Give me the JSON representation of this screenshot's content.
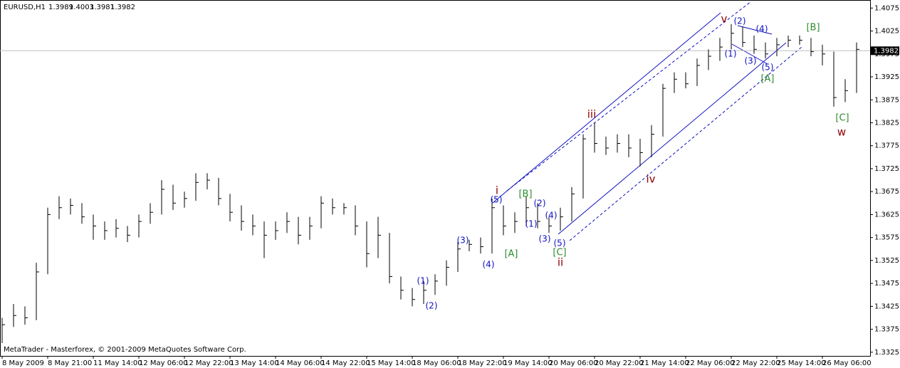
{
  "chart_data": {
    "type": "ohlc",
    "header": {
      "symbol": "EURUSD,H1",
      "open": 1.3989,
      "high": 1.4003,
      "low": 1.3981,
      "close": 1.3982
    },
    "footer": "MetaTrader - Masterforex, © 2001-2009 MetaQuotes Software Corp.",
    "current_price": 1.3982,
    "color": "#000000",
    "ylim": [
      1.3317,
      1.4091
    ],
    "yticks": [
      1.4075,
      1.4025,
      1.3975,
      1.3925,
      1.3875,
      1.3825,
      1.3775,
      1.3725,
      1.3675,
      1.3625,
      1.3575,
      1.3525,
      1.3475,
      1.3425,
      1.3375,
      1.3325
    ],
    "categories": [
      "8 May 2009",
      null,
      null,
      null,
      "8 May 21:00",
      null,
      null,
      null,
      "11 May 14:00",
      null,
      null,
      null,
      "12 May 06:00",
      null,
      null,
      null,
      "12 May 22:00",
      null,
      null,
      null,
      "13 May 14:00",
      null,
      null,
      null,
      "14 May 06:00",
      null,
      null,
      null,
      "14 May 22:00",
      null,
      null,
      null,
      "15 May 14:00",
      null,
      null,
      null,
      "18 May 06:00",
      null,
      null,
      null,
      "18 May 22:00",
      null,
      null,
      null,
      "19 May 14:00",
      null,
      null,
      null,
      "20 May 06:00",
      null,
      null,
      null,
      "20 May 22:00",
      null,
      null,
      null,
      "21 May 14:00",
      null,
      null,
      null,
      "22 May 06:00",
      null,
      null,
      null,
      "22 May 22:00",
      null,
      null,
      null,
      "25 May 14:00",
      null,
      null,
      null,
      "26 May 06:00",
      null,
      null,
      null
    ],
    "high": [
      1.34,
      1.343,
      1.3425,
      1.352,
      1.364,
      1.3665,
      1.366,
      1.365,
      1.3625,
      1.361,
      1.3615,
      1.36,
      1.3625,
      1.365,
      1.37,
      1.369,
      1.3675,
      1.3715,
      1.3715,
      1.3705,
      1.367,
      1.3645,
      1.3625,
      1.361,
      1.361,
      1.363,
      1.362,
      1.362,
      1.3665,
      1.366,
      1.365,
      1.3645,
      1.361,
      1.362,
      1.3585,
      1.349,
      1.3465,
      1.348,
      1.3495,
      1.3525,
      1.3565,
      1.357,
      1.3575,
      1.366,
      1.3645,
      1.363,
      1.3665,
      1.365,
      1.362,
      1.364,
      1.3685,
      1.38,
      1.3825,
      1.3795,
      1.38,
      1.38,
      1.379,
      1.382,
      1.391,
      1.3935,
      1.3935,
      1.3965,
      1.3985,
      1.401,
      1.404,
      1.4035,
      1.4015,
      1.4,
      1.401,
      1.4015,
      1.4015,
      1.401,
      1.3995,
      1.398,
      1.392,
      1.4
    ],
    "low": [
      1.3345,
      1.338,
      1.3385,
      1.3395,
      1.3495,
      1.3615,
      1.3625,
      1.3605,
      1.357,
      1.357,
      1.3575,
      1.3565,
      1.3575,
      1.3605,
      1.3625,
      1.3635,
      1.364,
      1.3655,
      1.368,
      1.3645,
      1.361,
      1.359,
      1.358,
      1.353,
      1.357,
      1.3585,
      1.356,
      1.357,
      1.3595,
      1.3625,
      1.3625,
      1.358,
      1.351,
      1.353,
      1.3475,
      1.344,
      1.3425,
      1.343,
      1.345,
      1.347,
      1.35,
      1.3545,
      1.354,
      1.354,
      1.358,
      1.3585,
      1.36,
      1.3595,
      1.3585,
      1.359,
      1.361,
      1.366,
      1.376,
      1.3755,
      1.376,
      1.375,
      1.373,
      1.375,
      1.3795,
      1.389,
      1.39,
      1.3905,
      1.394,
      1.396,
      1.3985,
      1.399,
      1.3975,
      1.3965,
      1.397,
      1.399,
      1.3995,
      1.397,
      1.395,
      1.386,
      1.387,
      1.389
    ],
    "close": [
      1.3385,
      1.3405,
      1.34,
      1.35,
      1.3625,
      1.364,
      1.3645,
      1.362,
      1.36,
      1.359,
      1.3595,
      1.358,
      1.361,
      1.363,
      1.368,
      1.365,
      1.366,
      1.3695,
      1.37,
      1.366,
      1.363,
      1.361,
      1.36,
      1.358,
      1.359,
      1.361,
      1.358,
      1.36,
      1.365,
      1.364,
      1.364,
      1.36,
      1.354,
      1.358,
      1.349,
      1.346,
      1.344,
      1.346,
      1.348,
      1.351,
      1.355,
      1.356,
      1.3555,
      1.364,
      1.36,
      1.361,
      1.364,
      1.361,
      1.36,
      1.362,
      1.367,
      1.379,
      1.378,
      1.377,
      1.378,
      1.377,
      1.376,
      1.38,
      1.39,
      1.392,
      1.391,
      1.395,
      1.397,
      1.399,
      1.402,
      1.4,
      1.3985,
      1.3975,
      1.3995,
      1.4005,
      1.4005,
      1.398,
      1.3975,
      1.388,
      1.3895,
      1.3985
    ],
    "annotations": [
      "(1)",
      "(2)",
      "(3)",
      "(4)",
      "(5)",
      "[A]",
      "[B]",
      "(1)",
      "(2)",
      "(3)",
      "(4)",
      "(5)",
      "[C]",
      "i",
      "ii",
      "iii",
      "iv",
      "v",
      "(1)",
      "(2)",
      "(3)",
      "(4)",
      "(5)",
      "[A]",
      "[B]",
      "[C]",
      "w"
    ]
  }
}
